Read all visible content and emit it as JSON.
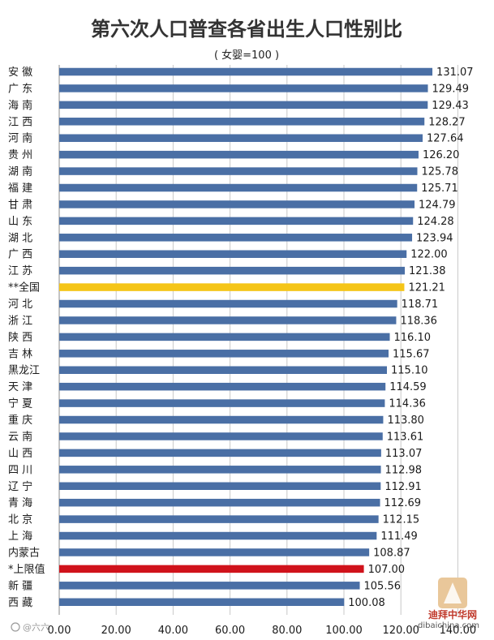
{
  "chart_data": {
    "type": "bar",
    "orientation": "horizontal",
    "title": "第六次人口普查各省出生人口性别比",
    "subtitle": "( 女婴=100 )",
    "categories": [
      "安 徽",
      "广 东",
      "海 南",
      "江 西",
      "河 南",
      "贵 州",
      "湖 南",
      "福 建",
      "甘 肃",
      "山 东",
      "湖 北",
      "广 西",
      "江 苏",
      "**全国",
      "河 北",
      "浙 江",
      "陕 西",
      "吉 林",
      "黑龙江",
      "天 津",
      "宁 夏",
      "重 庆",
      "云 南",
      "山 西",
      "四 川",
      "辽 宁",
      "青 海",
      "北 京",
      "上 海",
      "内蒙古",
      "*上限值",
      "新 疆",
      "西 藏"
    ],
    "values": [
      131.07,
      129.49,
      129.43,
      128.27,
      127.64,
      126.2,
      125.78,
      125.71,
      124.79,
      124.28,
      123.94,
      122.0,
      121.38,
      121.21,
      118.71,
      118.36,
      116.1,
      115.67,
      115.1,
      114.59,
      114.36,
      113.8,
      113.61,
      113.07,
      112.98,
      112.91,
      112.69,
      112.15,
      111.49,
      108.87,
      107.0,
      105.56,
      100.08
    ],
    "value_labels": [
      "131.07",
      "129.49",
      "129.43",
      "128.27",
      "127.64",
      "126.20",
      "125.78",
      "125.71",
      "124.79",
      "124.28",
      "123.94",
      "122.00",
      "121.38",
      "121.21",
      "118.71",
      "118.36",
      "116.10",
      "115.67",
      "115.10",
      "114.59",
      "114.36",
      "113.80",
      "113.61",
      "113.07",
      "112.98",
      "112.91",
      "112.69",
      "112.15",
      "111.49",
      "108.87",
      "107.00",
      "105.56",
      "100.08"
    ],
    "highlight": {
      "**全国": "#f5c518",
      "*上限值": "#d0121b"
    },
    "bar_color": "#4a6fa5",
    "xlim": [
      0,
      140
    ],
    "xticks": [
      "0.00",
      "20.00",
      "40.00",
      "60.00",
      "80.00",
      "100.00",
      "120.00",
      "140.00"
    ],
    "xtick_values": [
      0,
      20,
      40,
      60,
      80,
      100,
      120,
      140
    ],
    "grid": true
  },
  "watermark": {
    "weibo": "@六六",
    "logo_cn": "迪拜中华网",
    "logo_url": "dibaichina.com"
  }
}
